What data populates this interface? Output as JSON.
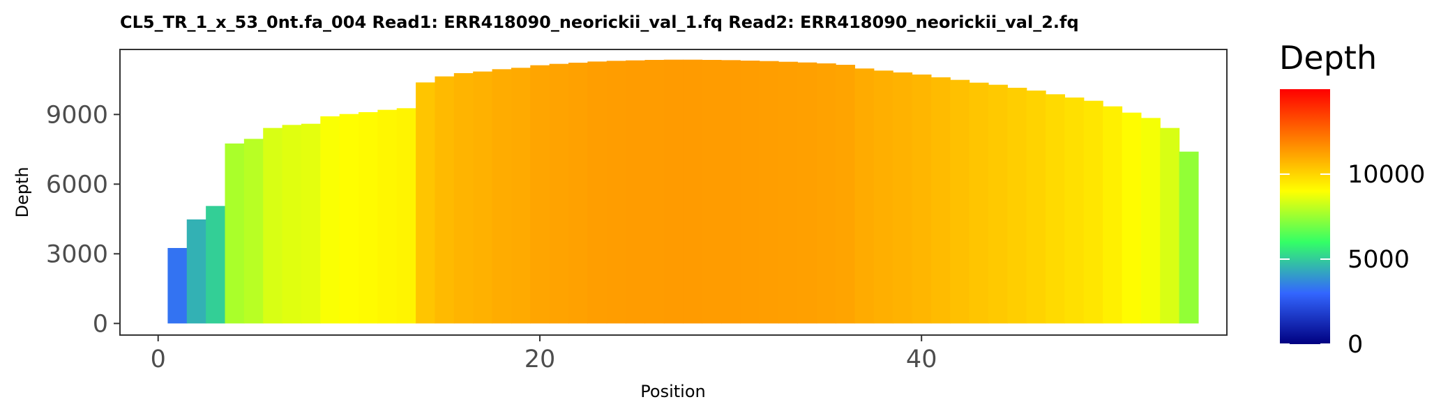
{
  "chart_data": {
    "type": "bar",
    "title": "CL5_TR_1_x_53_0nt.fa_004   Read1: ERR418090_neorickii_val_1.fq   Read2: ERR418090_neorickii_val_2.fq",
    "xlabel": "Position",
    "ylabel": "Depth",
    "xlim": [
      -2,
      56
    ],
    "ylim": [
      -500,
      11800
    ],
    "xticks": [
      0,
      20,
      40
    ],
    "yticks": [
      0,
      3000,
      6000,
      9000
    ],
    "legend": {
      "title": "Depth",
      "position": "right",
      "min": 0,
      "max": 15000,
      "ticks": [
        0,
        5000,
        10000
      ],
      "colors": [
        "#000080",
        "#3366ff",
        "#33ff66",
        "#ffff00",
        "#ff8000",
        "#ff0000"
      ]
    },
    "grid": false,
    "x": [
      1,
      2,
      3,
      4,
      5,
      6,
      7,
      8,
      9,
      10,
      11,
      12,
      13,
      14,
      15,
      16,
      17,
      18,
      19,
      20,
      21,
      22,
      23,
      24,
      25,
      26,
      27,
      28,
      29,
      30,
      31,
      32,
      33,
      34,
      35,
      36,
      37,
      38,
      39,
      40,
      41,
      42,
      43,
      44,
      45,
      46,
      47,
      48,
      49,
      50,
      51,
      52,
      53,
      54
    ],
    "values": [
      3250,
      4480,
      5060,
      7750,
      7950,
      8420,
      8550,
      8600,
      8920,
      9020,
      9100,
      9200,
      9270,
      10380,
      10640,
      10780,
      10850,
      10950,
      11010,
      11120,
      11180,
      11230,
      11280,
      11310,
      11330,
      11350,
      11360,
      11360,
      11350,
      11340,
      11320,
      11300,
      11270,
      11240,
      11200,
      11140,
      10980,
      10890,
      10810,
      10720,
      10600,
      10490,
      10370,
      10280,
      10150,
      10030,
      9870,
      9730,
      9590,
      9350,
      9080,
      8850,
      8420,
      7400
    ]
  }
}
